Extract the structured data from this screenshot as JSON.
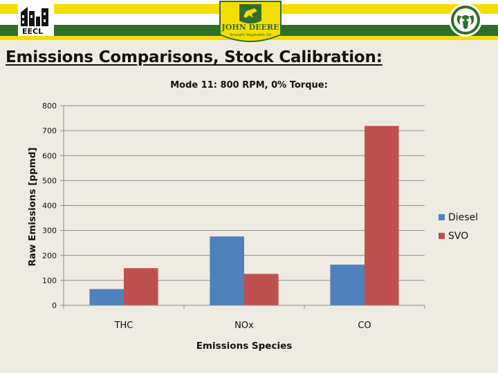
{
  "slide": {
    "title": "Emissions Comparisons, Stock Calibration:",
    "logos": {
      "left_text": "EECL",
      "center_brand": "JOHN DEERE",
      "center_subtitle": "Straight Vegetable Oil"
    },
    "colors": {
      "background": "#eeece2",
      "banner_yellow": "#f4de00",
      "banner_green": "#2e6f2c"
    }
  },
  "chart_data": {
    "type": "bar",
    "title": "Mode 11: 800 RPM, 0% Torque:",
    "xlabel": "Emissions Species",
    "ylabel": "Raw Emissions [ppmd]",
    "categories": [
      "THC",
      "NOx",
      "CO"
    ],
    "ylim": [
      0,
      800
    ],
    "yticks": [
      0,
      100,
      200,
      300,
      400,
      500,
      600,
      700,
      800
    ],
    "grid": true,
    "legend_position": "right",
    "series": [
      {
        "name": "Diesel",
        "color": "#4f81bd",
        "values": [
          65,
          276,
          163
        ]
      },
      {
        "name": "SVO",
        "color": "#c0504d",
        "values": [
          149,
          126,
          719
        ]
      }
    ]
  }
}
